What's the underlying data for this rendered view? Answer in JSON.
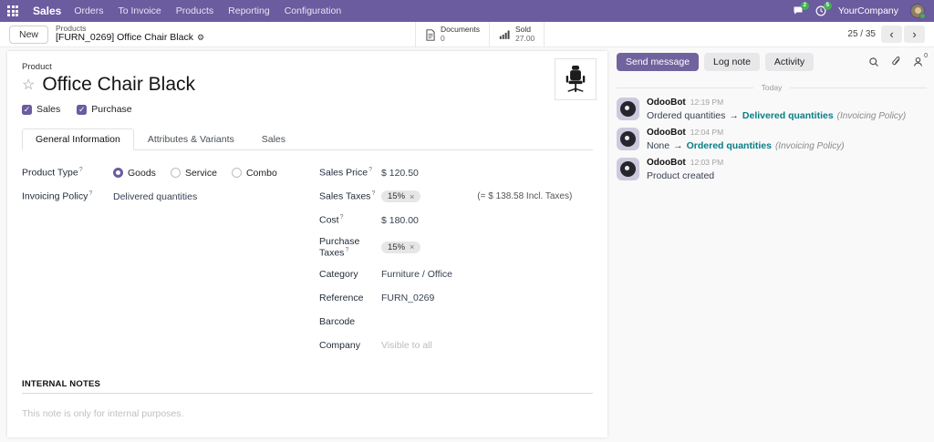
{
  "colors": {
    "topbar_purple": "#6B5B9F",
    "primary_button_purple": "#71639E",
    "teal_tracking": "#077E86",
    "badge_green": "#45B153"
  },
  "help_marker": "?",
  "topbar": {
    "app_name": "Sales",
    "menus": [
      "Orders",
      "To Invoice",
      "Products",
      "Reporting",
      "Configuration"
    ],
    "messages_badge": "2",
    "activities_badge": "5",
    "company": "YourCompany"
  },
  "control_panel": {
    "new_button": "New",
    "breadcrumb_parent": "Products",
    "breadcrumb_current": "[FURN_0269] Office Chair Black",
    "stat_buttons": [
      {
        "label": "Documents",
        "value": "0"
      },
      {
        "label": "Sold",
        "value": "27.00"
      }
    ],
    "pager": "25 / 35",
    "pager_prev": "‹",
    "pager_next": "›"
  },
  "form": {
    "header_label": "Product",
    "title": "Office Chair Black",
    "checkboxes": [
      {
        "label": "Sales",
        "checked": true
      },
      {
        "label": "Purchase",
        "checked": true
      }
    ],
    "tabs": [
      {
        "label": "General Information",
        "active": true
      },
      {
        "label": "Attributes & Variants",
        "active": false
      },
      {
        "label": "Sales",
        "active": false
      }
    ],
    "tag_remove_glyph": "×",
    "fields": {
      "product_type": {
        "label": "Product Type",
        "options": [
          "Goods",
          "Service",
          "Combo"
        ],
        "selected": "Goods"
      },
      "invoicing_policy": {
        "label": "Invoicing Policy",
        "value": "Delivered quantities"
      },
      "sales_price": {
        "label": "Sales Price",
        "value": "$ 120.50"
      },
      "sales_taxes": {
        "label": "Sales Taxes",
        "tag": "15%",
        "incl_note": "(= $ 138.58 Incl. Taxes)"
      },
      "cost": {
        "label": "Cost",
        "value": "$ 180.00"
      },
      "purchase_taxes": {
        "label": "Purchase Taxes",
        "tag": "15%"
      },
      "category": {
        "label": "Category",
        "value": "Furniture / Office"
      },
      "reference": {
        "label": "Reference",
        "value": "FURN_0269"
      },
      "barcode": {
        "label": "Barcode",
        "value": ""
      },
      "company": {
        "label": "Company",
        "placeholder": "Visible to all"
      }
    },
    "internal_notes": {
      "title": "INTERNAL NOTES",
      "placeholder": "This note is only for internal purposes."
    }
  },
  "chatter": {
    "send_message": "Send message",
    "log_note": "Log note",
    "activity": "Activity",
    "followers_count": "0",
    "divider": "Today",
    "messages": [
      {
        "author": "OdooBot",
        "time": "12:19 PM",
        "old": "Ordered quantities",
        "arrow": "→",
        "new": "Delivered quantities",
        "field": "(Invoicing Policy)"
      },
      {
        "author": "OdooBot",
        "time": "12:04 PM",
        "old": "None",
        "arrow": "→",
        "new": "Ordered quantities",
        "field": "(Invoicing Policy)"
      },
      {
        "author": "OdooBot",
        "time": "12:03 PM",
        "body": "Product created"
      }
    ]
  }
}
